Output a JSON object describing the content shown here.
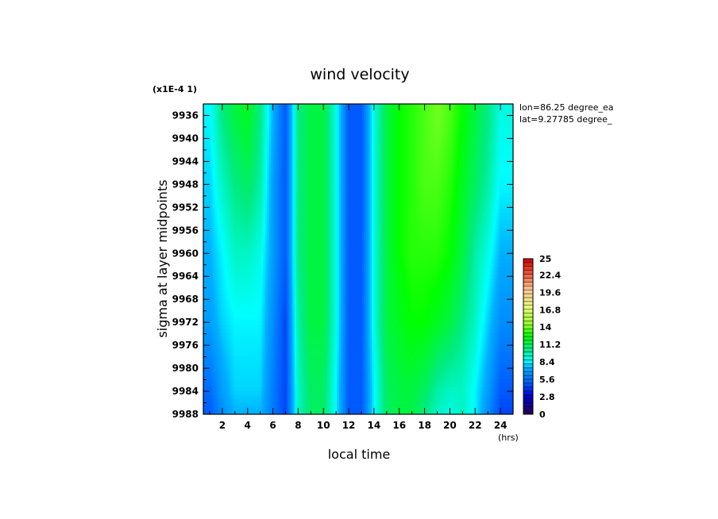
{
  "chart_data": {
    "type": "heatmap",
    "title": "wind velocity",
    "xlabel": "local time",
    "ylabel": "sigma at layer midpoints",
    "x_unit": "(hrs)",
    "y_scale_note": "(x1E-4 1)",
    "annotations": [
      "lon=86.25 degree_ea",
      "lat=9.27785 degree_"
    ],
    "xlim": [
      0.5,
      25
    ],
    "ylim": [
      9988,
      9934
    ],
    "x_ticks": [
      "2",
      "4",
      "6",
      "8",
      "10",
      "12",
      "14",
      "16",
      "18",
      "20",
      "22",
      "24"
    ],
    "y_ticks": [
      "9936",
      "9940",
      "9944",
      "9948",
      "9952",
      "9956",
      "9960",
      "9964",
      "9968",
      "9972",
      "9976",
      "9980",
      "9984",
      "9988"
    ],
    "colorbar": {
      "min": 0,
      "max": 25,
      "labels": [
        "25",
        "22.4",
        "19.6",
        "16.8",
        "14",
        "11.2",
        "8.4",
        "5.6",
        "2.8",
        "0"
      ]
    },
    "x": [
      1,
      2,
      3,
      4,
      5,
      6,
      7,
      8,
      9,
      10,
      11,
      12,
      13,
      14,
      15,
      16,
      17,
      18,
      19,
      20,
      21,
      22,
      23,
      24
    ],
    "y": [
      9936,
      9948,
      9960,
      9972,
      9984,
      9988
    ],
    "z": [
      [
        8.5,
        10.5,
        11.5,
        12.0,
        10.5,
        7.5,
        5.0,
        10.5,
        11.5,
        11.5,
        9.0,
        5.0,
        5.0,
        9.0,
        11.5,
        12.5,
        13.0,
        13.5,
        14.0,
        13.5,
        12.5,
        11.5,
        10.5,
        9.0
      ],
      [
        8.0,
        9.5,
        10.5,
        11.0,
        10.0,
        7.0,
        5.0,
        10.5,
        11.5,
        11.5,
        9.0,
        5.0,
        5.0,
        9.0,
        11.5,
        12.5,
        13.0,
        13.5,
        13.5,
        13.0,
        12.0,
        11.0,
        10.0,
        8.5
      ],
      [
        7.5,
        8.5,
        9.5,
        9.5,
        9.0,
        7.0,
        5.0,
        10.5,
        11.5,
        11.5,
        9.0,
        5.0,
        5.0,
        9.0,
        11.5,
        12.5,
        13.0,
        13.0,
        13.0,
        12.5,
        11.5,
        10.0,
        9.0,
        7.5
      ],
      [
        7.0,
        8.0,
        8.5,
        8.5,
        8.5,
        6.5,
        4.5,
        10.0,
        11.5,
        11.5,
        9.0,
        5.0,
        5.0,
        9.0,
        11.5,
        12.0,
        12.5,
        12.5,
        12.0,
        11.5,
        10.5,
        9.5,
        8.0,
        6.5
      ],
      [
        5.5,
        7.0,
        8.0,
        8.0,
        8.0,
        6.0,
        4.5,
        9.5,
        11.0,
        11.0,
        8.5,
        5.0,
        5.0,
        8.5,
        11.0,
        11.5,
        11.5,
        11.0,
        10.0,
        9.5,
        9.5,
        8.5,
        7.0,
        5.0
      ],
      [
        5.0,
        6.5,
        7.5,
        7.5,
        7.5,
        6.0,
        4.5,
        9.5,
        11.0,
        11.0,
        8.5,
        5.0,
        5.0,
        8.5,
        11.0,
        11.5,
        11.5,
        10.5,
        9.5,
        9.0,
        9.5,
        8.5,
        6.5,
        4.5
      ]
    ]
  }
}
